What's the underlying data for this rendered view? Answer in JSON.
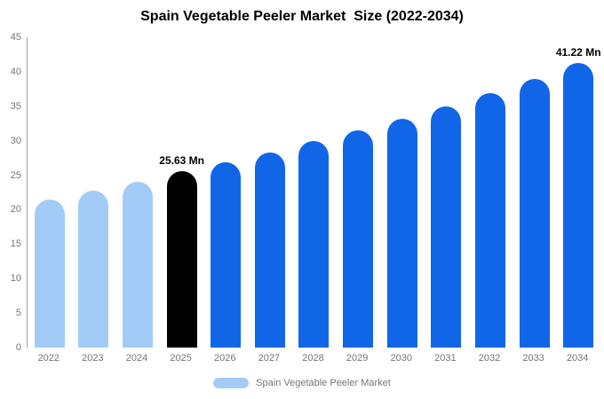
{
  "chart_data": {
    "type": "bar",
    "title": "Spain Vegetable Peeler Market  Size (2022-2034)",
    "categories": [
      "2022",
      "2023",
      "2024",
      "2025",
      "2026",
      "2027",
      "2028",
      "2029",
      "2030",
      "2031",
      "2032",
      "2033",
      "2034"
    ],
    "values": [
      21.5,
      22.8,
      24.1,
      25.63,
      26.9,
      28.3,
      29.9,
      31.5,
      33.2,
      35.0,
      36.9,
      38.9,
      41.22
    ],
    "unit": "Mn",
    "ylim": [
      0,
      45
    ],
    "yticks": [
      0,
      5,
      10,
      15,
      20,
      25,
      30,
      35,
      40,
      45
    ],
    "grid": false,
    "legend": "Spain Vegetable Peeler Market",
    "legend_position": "bottom",
    "annotations": [
      {
        "category": "2025",
        "text": "25.63 Mn"
      },
      {
        "category": "2034",
        "text": "41.22 Mn"
      }
    ],
    "colors": {
      "past": "#A2CCF7",
      "current": "#000000",
      "forecast": "#1166E8"
    },
    "bar_color_keys": [
      "past",
      "past",
      "past",
      "current",
      "forecast",
      "forecast",
      "forecast",
      "forecast",
      "forecast",
      "forecast",
      "forecast",
      "forecast",
      "forecast"
    ]
  }
}
